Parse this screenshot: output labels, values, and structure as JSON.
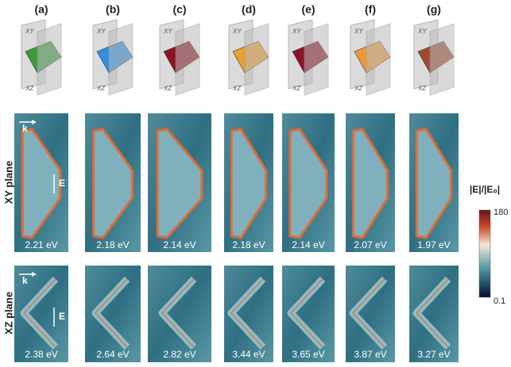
{
  "panels": [
    {
      "label": "(a)",
      "color": "#3a9a3a",
      "xy_energy": "2.21 eV",
      "xz_energy": "2.38 eV"
    },
    {
      "label": "(b)",
      "color": "#2f8fe0",
      "xy_energy": "2.18 eV",
      "xz_energy": "2.64 eV"
    },
    {
      "label": "(c)",
      "color": "#8c1420",
      "xy_energy": "2.14 eV",
      "xz_energy": "2.82 eV"
    },
    {
      "label": "(d)",
      "color": "#e8a030",
      "xy_energy": "2.18 eV",
      "xz_energy": "3.44 eV"
    },
    {
      "label": "(e)",
      "color": "#8c1428",
      "xy_energy": "2.14 eV",
      "xz_energy": "3.65 eV"
    },
    {
      "label": "(f)",
      "color": "#ec9a3a",
      "xy_energy": "2.07 eV",
      "xz_energy": "3.87 eV"
    },
    {
      "label": "(g)",
      "color": "#a04a30",
      "xy_energy": "1.97 eV",
      "xz_energy": "3.27 eV"
    }
  ],
  "icon_labels": {
    "xy": "XY",
    "xz": "XZ"
  },
  "rows": {
    "xy": "XY plane",
    "xz": "XZ plane"
  },
  "arrows": {
    "k": "k",
    "E": "E"
  },
  "colorbar": {
    "title": "|E|/|E₀|",
    "max": "180",
    "min": "0.1"
  }
}
